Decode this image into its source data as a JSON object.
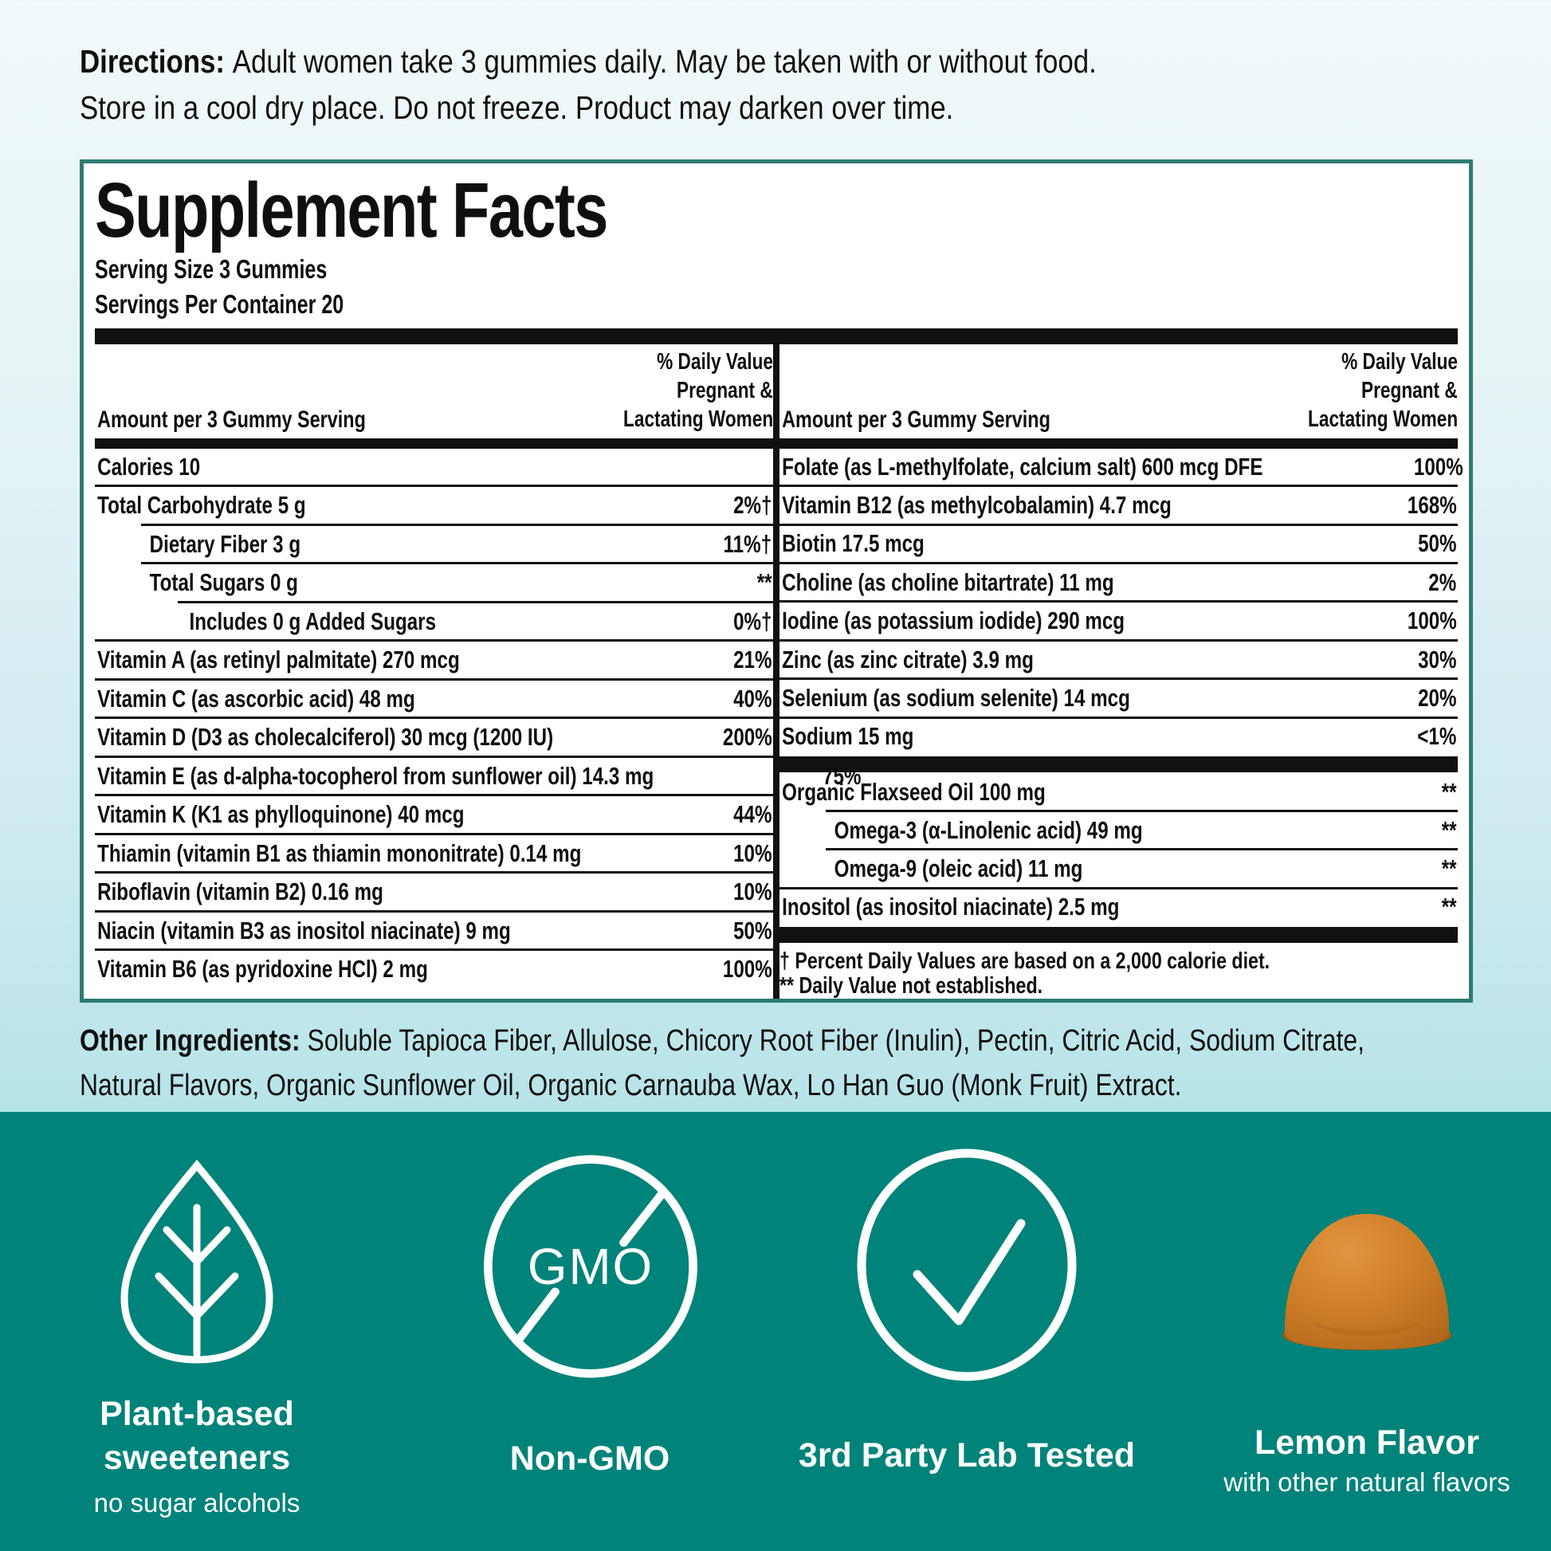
{
  "directions": {
    "label": "Directions:",
    "line1": "Adult women take 3 gummies daily. May be taken with or without food.",
    "line2": "Store in a cool dry place. Do not freeze. Product may darken over time."
  },
  "panel": {
    "title": "Supplement Facts",
    "serving_size": "Serving Size 3 Gummies",
    "servings_per_container": "Servings Per Container 20",
    "amount_header": "Amount per 3 Gummy Serving",
    "dv_header_lines": [
      "% Daily Value",
      "Pregnant &",
      "Lactating Women"
    ],
    "left_rows": [
      {
        "name": "Calories 10",
        "value": "",
        "indent": 0
      },
      {
        "name": "Total Carbohydrate 5 g",
        "value": "2%†",
        "indent": 0
      },
      {
        "name": "Dietary Fiber 3 g",
        "value": "11%†",
        "indent": 1
      },
      {
        "name": "Total Sugars 0 g",
        "value": "**",
        "indent": 1
      },
      {
        "name": "Includes 0 g Added Sugars",
        "value": "0%†",
        "indent": 2
      },
      {
        "name": "Vitamin A (as retinyl palmitate) 270 mcg",
        "value": "21%",
        "indent": 0
      },
      {
        "name": "Vitamin C (as ascorbic acid) 48 mg",
        "value": "40%",
        "indent": 0
      },
      {
        "name": "Vitamin D (D3 as cholecalciferol) 30 mcg (1200 IU)",
        "value": "200%",
        "indent": 0
      },
      {
        "name": "Vitamin E (as d-alpha-tocopherol from sunflower oil) 14.3 mg",
        "value": "75%",
        "indent": 0
      },
      {
        "name": "Vitamin K (K1 as phylloquinone) 40 mcg",
        "value": "44%",
        "indent": 0
      },
      {
        "name": "Thiamin (vitamin B1 as thiamin mononitrate) 0.14 mg",
        "value": "10%",
        "indent": 0
      },
      {
        "name": "Riboflavin (vitamin B2) 0.16 mg",
        "value": "10%",
        "indent": 0
      },
      {
        "name": "Niacin (vitamin B3 as inositol niacinate) 9 mg",
        "value": "50%",
        "indent": 0
      },
      {
        "name": "Vitamin B6 (as pyridoxine HCl) 2 mg",
        "value": "100%",
        "indent": 0
      }
    ],
    "right_rows_top": [
      {
        "name": "Folate (as L-methylfolate, calcium salt) 600 mcg DFE",
        "value": "100%",
        "indent": 0
      },
      {
        "name": "Vitamin B12 (as methylcobalamin) 4.7 mcg",
        "value": "168%",
        "indent": 0
      },
      {
        "name": "Biotin 17.5 mcg",
        "value": "50%",
        "indent": 0
      },
      {
        "name": "Choline (as choline bitartrate) 11 mg",
        "value": "2%",
        "indent": 0
      },
      {
        "name": "Iodine (as potassium iodide) 290 mcg",
        "value": "100%",
        "indent": 0
      },
      {
        "name": "Zinc (as zinc citrate) 3.9 mg",
        "value": "30%",
        "indent": 0
      },
      {
        "name": "Selenium (as sodium selenite) 14 mcg",
        "value": "20%",
        "indent": 0
      },
      {
        "name": "Sodium 15 mg",
        "value": "<1%",
        "indent": 0
      }
    ],
    "right_rows_mid": [
      {
        "name": "Organic Flaxseed Oil 100 mg",
        "value": "**",
        "indent": 0
      },
      {
        "name": "Omega-3 (α-Linolenic acid) 49 mg",
        "value": "**",
        "indent": 1
      },
      {
        "name": "Omega-9 (oleic acid) 11 mg",
        "value": "**",
        "indent": 1
      },
      {
        "name": "Inositol (as inositol niacinate) 2.5 mg",
        "value": "**",
        "indent": 0
      }
    ],
    "footnotes": [
      "† Percent Daily Values are based on a 2,000 calorie diet.",
      "** Daily Value not established."
    ]
  },
  "other_ingredients": {
    "label": "Other Ingredients:",
    "line1": "Soluble Tapioca Fiber, Allulose, Chicory Root Fiber (Inulin), Pectin, Citric Acid, Sodium Citrate,",
    "line2": "Natural Flavors, Organic Sunflower Oil, Organic Carnauba Wax, Lo Han Guo (Monk Fruit) Extract."
  },
  "features": [
    {
      "icon": "leaf-icon",
      "title_line1": "Plant-based",
      "title_line2": "sweeteners",
      "subtitle": "no sugar alcohols"
    },
    {
      "icon": "gmo-crossed-icon",
      "icon_text": "GMO",
      "title_line1": "Non-GMO"
    },
    {
      "icon": "checkmark-circle-icon",
      "title_line1": "3rd Party Lab Tested"
    },
    {
      "icon": "gummy-image",
      "title_line1": "Lemon Flavor",
      "subtitle": "with other natural flavors"
    }
  ],
  "colors": {
    "teal_footer": "#00837a",
    "panel_border": "#2f7c72",
    "bg_top": "#f1f9fa",
    "bg_bottom": "#b6e4e9",
    "gummy_orange": "#d07f28",
    "rule_black": "#111111"
  }
}
